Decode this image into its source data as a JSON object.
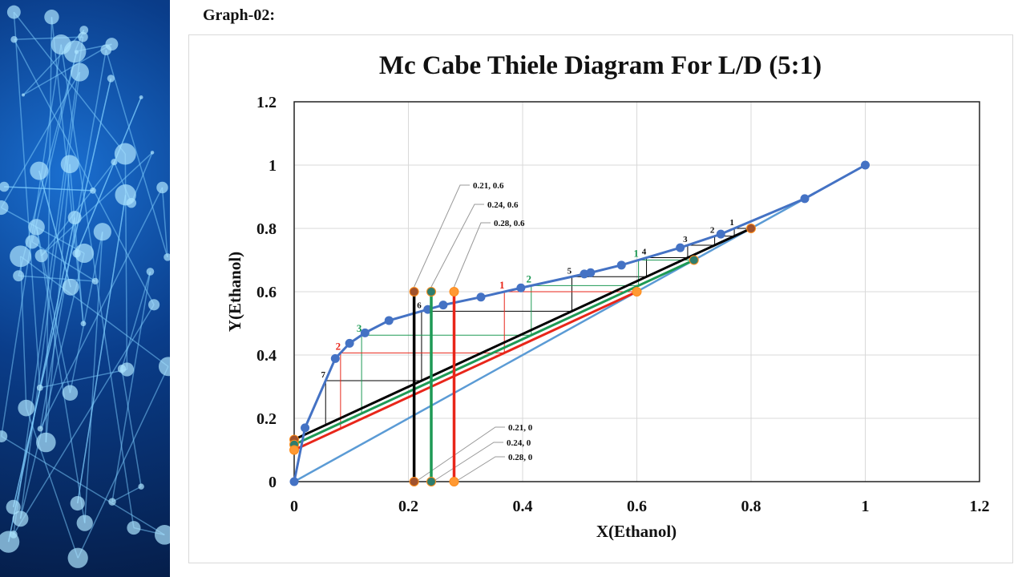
{
  "heading": "Graph-02:",
  "chart_data": {
    "type": "scatter",
    "title": "Mc Cabe Thiele Diagram For L/D (5:1)",
    "xlabel": "X(Ethanol)",
    "ylabel": "Y(Ethanol)",
    "xlim": [
      0,
      1.2
    ],
    "ylim": [
      0,
      1.2
    ],
    "xticks": [
      "0",
      "0.2",
      "0.4",
      "0.6",
      "0.8",
      "1",
      "1.2"
    ],
    "yticks": [
      "0",
      "0.2",
      "0.4",
      "0.6",
      "0.8",
      "1",
      "1.2"
    ],
    "grid": true,
    "equilibrium": {
      "color": "#4472c4",
      "x": [
        0,
        0.019,
        0.072,
        0.097,
        0.124,
        0.166,
        0.234,
        0.261,
        0.327,
        0.397,
        0.508,
        0.519,
        0.573,
        0.676,
        0.747,
        0.894,
        1
      ],
      "y": [
        0,
        0.17,
        0.389,
        0.437,
        0.47,
        0.509,
        0.544,
        0.558,
        0.583,
        0.612,
        0.656,
        0.66,
        0.684,
        0.739,
        0.782,
        0.894,
        1
      ]
    },
    "diagonal": {
      "color": "#5b9bd5",
      "x": [
        0,
        1
      ],
      "y": [
        0,
        1
      ]
    },
    "operating_lines": [
      {
        "xD": 0.8,
        "intercept": 0.133,
        "color": "#000000",
        "marker": "#a0522d",
        "stages": 7,
        "feed_x": 0.21,
        "feed_labels": [
          "0.21, 0.6",
          "0.21, 0"
        ]
      },
      {
        "xD": 0.7,
        "intercept": 0.117,
        "color": "#1e9a55",
        "marker": "#2e7d6e",
        "stages": 3,
        "feed_x": 0.24,
        "feed_labels": [
          "0.24, 0.6",
          "0.24, 0"
        ]
      },
      {
        "xD": 0.6,
        "intercept": 0.1,
        "color": "#e8261a",
        "marker": "#ff9933",
        "stages": 2,
        "feed_x": 0.28,
        "feed_labels": [
          "0.28, 0.6",
          "0.28, 0"
        ]
      }
    ],
    "feed_line_top": 0.6
  }
}
